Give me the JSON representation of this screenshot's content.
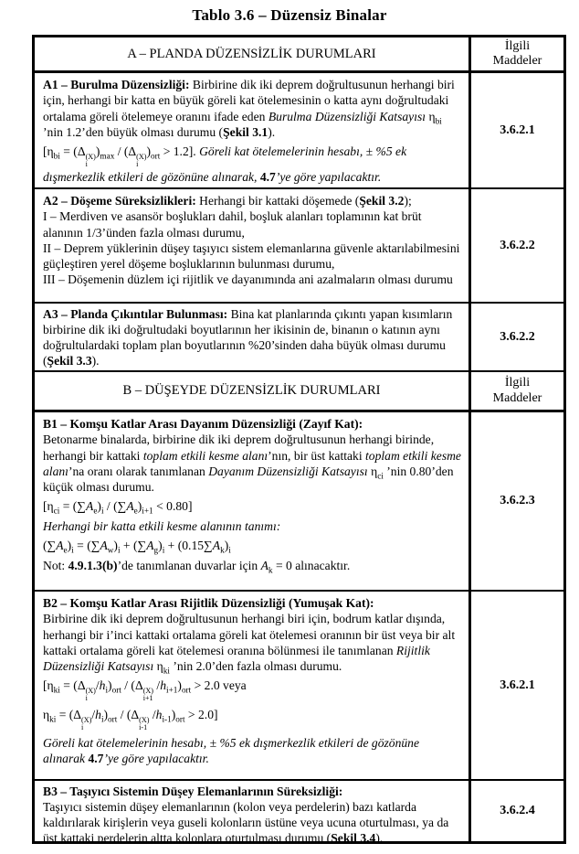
{
  "title": "Tablo 3.6 – Düzensiz Binalar",
  "table": {
    "section_a_header": "A – PLANDA DÜZENSİZLİK DURUMLARI",
    "section_a_related": "İlgili Maddeler",
    "section_b_header": "B – DÜŞEYDE DÜZENSİZLİK DURUMLARI",
    "section_b_related": "İlgili Maddeler",
    "rows_a": [
      {
        "id": "A1",
        "article": "3.6.2.1",
        "paragraphs": [
          {
            "type": "text",
            "segments": [
              {
                "s": "b",
                "t": "A1 – Burulma Düzensizliği: "
              },
              {
                "s": "n",
                "t": "Birbirine dik iki deprem doğrultusunun herhangi biri için, herhangi bir katta en büyük göreli kat ötelemesinin o katta aynı doğrultudaki ortalama göreli ötelemeye oranını ifade eden "
              },
              {
                "s": "i",
                "t": "Burulma Düzensizliği Katsayısı"
              },
              {
                "s": "n",
                "t": " η_{bi} ’nin 1.2’den büyük olması durumu ("
              },
              {
                "s": "b",
                "t": "Şekil 3.1"
              },
              {
                "s": "n",
                "t": ")."
              }
            ]
          },
          {
            "type": "formula",
            "segments": [
              {
                "s": "n",
                "t": "[η_{bi} = (Δ{{(X)|i}})_{max} / (Δ{{(X)|i}})_{ort} > 1.2]. "
              },
              {
                "s": "i",
                "t": "Göreli kat ötelemelerinin hesabı, ± %5 ek dışmerkezlik etkileri de gözönüne alınarak, "
              },
              {
                "s": "b",
                "t": "4.7"
              },
              {
                "s": "i",
                "t": "’ye göre yapılacaktır."
              }
            ]
          }
        ]
      },
      {
        "id": "A2",
        "article": "3.6.2.2",
        "paragraphs": [
          {
            "type": "text",
            "segments": [
              {
                "s": "b",
                "t": "A2 – Döşeme Süreksizlikleri: "
              },
              {
                "s": "n",
                "t": "Herhangi bir kattaki döşemede ("
              },
              {
                "s": "b",
                "t": "Şekil 3.2"
              },
              {
                "s": "n",
                "t": ");"
              }
            ]
          },
          {
            "type": "text",
            "segments": [
              {
                "s": "n",
                "t": "I – Merdiven ve asansör boşlukları dahil, boşluk alanları toplamının kat brüt alanının 1/3’ünden fazla olması durumu,"
              }
            ]
          },
          {
            "type": "text",
            "segments": [
              {
                "s": "n",
                "t": "II – Deprem yüklerinin düşey taşıyıcı sistem elemanlarına güvenle aktarılabilmesini güçleştiren yerel döşeme boşluklarının bulunması durumu,"
              }
            ]
          },
          {
            "type": "text",
            "segments": [
              {
                "s": "n",
                "t": "III – Döşemenin düzlem içi rijitlik ve dayanımında ani azalmaların olması durumu"
              }
            ]
          }
        ]
      },
      {
        "id": "A3",
        "article": "3.6.2.2",
        "paragraphs": [
          {
            "type": "text",
            "segments": [
              {
                "s": "b",
                "t": "A3 – Planda Çıkıntılar Bulunması: "
              },
              {
                "s": "n",
                "t": "Bina kat planlarında çıkıntı yapan kısımların birbirine dik iki doğrultudaki boyutlarının her ikisinin de, binanın o katının aynı doğrultulardaki toplam plan boyutlarının %20’sinden daha büyük olması durumu ("
              },
              {
                "s": "b",
                "t": "Şekil 3.3"
              },
              {
                "s": "n",
                "t": ")."
              }
            ]
          }
        ]
      }
    ],
    "rows_b": [
      {
        "id": "B1",
        "article": "3.6.2.3",
        "paragraphs": [
          {
            "type": "text",
            "segments": [
              {
                "s": "b",
                "t": "B1 – Komşu Katlar Arası Dayanım Düzensizliği (Zayıf Kat):"
              }
            ]
          },
          {
            "type": "text",
            "segments": [
              {
                "s": "n",
                "t": "Betonarme binalarda, birbirine dik iki deprem doğrultusunun herhangi birinde, herhangi bir kattaki "
              },
              {
                "s": "i",
                "t": "toplam etkili kesme alanı"
              },
              {
                "s": "n",
                "t": "’nın, bir üst kattaki "
              },
              {
                "s": "i",
                "t": "toplam etkili kesme alanı"
              },
              {
                "s": "n",
                "t": "’na oranı olarak tanımlanan "
              },
              {
                "s": "i",
                "t": "Dayanım Düzensizliği Katsayısı"
              },
              {
                "s": "n",
                "t": " η_{ci} ’nin 0.80’den küçük olması durumu."
              }
            ]
          },
          {
            "type": "formula",
            "segments": [
              {
                "s": "n",
                "t": "[η_{ci} = (∑*A*_{e})_{i} / (∑*A*_{e})_{i+1} < 0.80]"
              }
            ]
          },
          {
            "type": "text",
            "segments": [
              {
                "s": "i",
                "t": "Herhangi bir katta etkili kesme alanının tanımı:"
              }
            ]
          },
          {
            "type": "formula",
            "segments": [
              {
                "s": "n",
                "t": "(∑*A*_{e})_{i} = (∑*A*_{w})_{i} + (∑*A*_{g})_{i} + (0.15∑*A*_{k})_{i}"
              }
            ]
          },
          {
            "type": "formula",
            "segments": [
              {
                "s": "n",
                "t": "Not: "
              },
              {
                "s": "b",
                "t": "4.9.1.3(b)"
              },
              {
                "s": "n",
                "t": "’de tanımlanan duvarlar için *A*_{k} = 0 alınacaktır."
              }
            ]
          }
        ]
      },
      {
        "id": "B2",
        "article": "3.6.2.1",
        "paragraphs": [
          {
            "type": "text",
            "segments": [
              {
                "s": "b",
                "t": "B2 – Komşu Katlar Arası Rijitlik Düzensizliği (Yumuşak Kat):"
              }
            ]
          },
          {
            "type": "text",
            "segments": [
              {
                "s": "n",
                "t": "Birbirine dik iki deprem doğrultusunun herhangi biri için, bodrum katlar dışında, herhangi bir i’inci kattaki ortalama göreli kat ötelemesi oranının bir üst veya bir alt kattaki ortalama göreli kat ötelemesi oranına bölünmesi ile tanımlanan "
              },
              {
                "s": "i",
                "t": "Rijitlik Düzensizliği Katsayısı"
              },
              {
                "s": "n",
                "t": " η_{ki} ’nin 2.0’den fazla olması durumu."
              }
            ]
          },
          {
            "type": "formula",
            "segments": [
              {
                "s": "n",
                "t": "[η_{ki} = (Δ{{(X)|i}}/*h*_{i})_{ort} / (Δ{{(X)|i+1}} /*h*_{i+1})_{ort} > 2.0 veya"
              }
            ]
          },
          {
            "type": "formula",
            "segments": [
              {
                "s": "n",
                "t": "η_{ki} = (Δ{{(X)|i}}/*h*_{i})_{ort} / (Δ{{(X)|i-1}} /*h*_{i-1})_{ort} > 2.0]"
              }
            ]
          },
          {
            "type": "text",
            "segments": [
              {
                "s": "i",
                "t": "Göreli kat ötelemelerinin hesabı, ± %5 ek dışmerkezlik etkileri de gözönüne alınarak "
              },
              {
                "s": "b",
                "t": "4.7"
              },
              {
                "s": "i",
                "t": "’ye göre yapılacaktır."
              }
            ]
          }
        ]
      },
      {
        "id": "B3",
        "article": "3.6.2.4",
        "paragraphs": [
          {
            "type": "text",
            "segments": [
              {
                "s": "b",
                "t": "B3 – Taşıyıcı Sistemin Düşey Elemanlarının Süreksizliği:"
              }
            ]
          },
          {
            "type": "text",
            "segments": [
              {
                "s": "n",
                "t": "Taşıyıcı sistemin düşey elemanlarının (kolon veya perdelerin) bazı katlarda kaldırılarak kirişlerin veya guseli kolonların üstüne veya ucuna oturtulması, ya da üst kattaki perdelerin altta kolonlara oturtulması durumu ("
              },
              {
                "s": "b",
                "t": "Şekil 3.4"
              },
              {
                "s": "n",
                "t": ")."
              }
            ]
          }
        ]
      }
    ]
  }
}
